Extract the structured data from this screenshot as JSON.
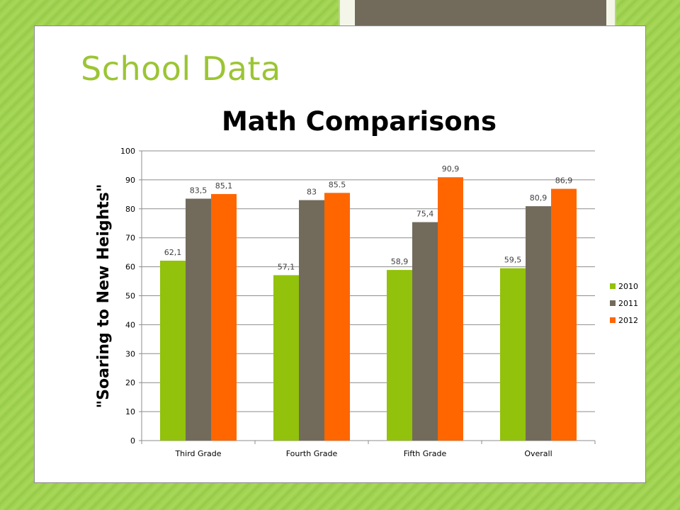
{
  "slide": {
    "title": "School Data"
  },
  "colors": {
    "2010": "#92c20b",
    "2011": "#726b5b",
    "2012": "#ff6600",
    "title_green": "#9bc534"
  },
  "chart_data": {
    "type": "bar",
    "title": "Math Comparisons",
    "ylabel": "\"Soaring to New Heights\"",
    "xlabel": "",
    "categories": [
      "Third Grade",
      "Fourth Grade",
      "Fifth Grade",
      "Overall"
    ],
    "series": [
      {
        "name": "2010",
        "values": [
          62.1,
          57.1,
          58.9,
          59.5
        ],
        "labels": [
          "62,1",
          "57,1",
          "58,9",
          "59,5"
        ],
        "color": "#92c20b"
      },
      {
        "name": "2011",
        "values": [
          83.5,
          83,
          75.4,
          80.9
        ],
        "labels": [
          "83,5",
          "83",
          "75,4",
          "80,9"
        ],
        "color": "#726b5b"
      },
      {
        "name": "2012",
        "values": [
          85.1,
          85.5,
          90.9,
          86.9
        ],
        "labels": [
          "85,1",
          "85.5",
          "90,9",
          "86,9"
        ],
        "color": "#ff6600"
      }
    ],
    "ylim": [
      0,
      100
    ],
    "yticks": [
      "0",
      "10",
      "20",
      "30",
      "40",
      "50",
      "60",
      "70",
      "80",
      "90",
      "100"
    ],
    "grid": true,
    "legend": "right"
  }
}
